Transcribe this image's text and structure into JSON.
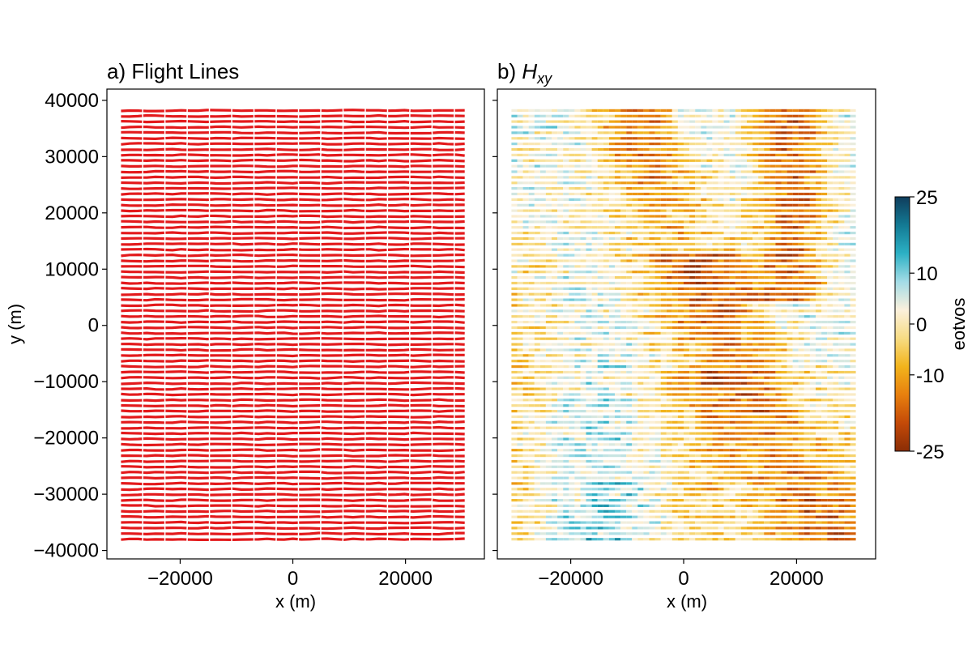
{
  "chart_data": [
    {
      "type": "scatter",
      "title": "a) Flight Lines",
      "xlabel": "x (m)",
      "ylabel": "y (m)",
      "xlim": [
        -33000,
        34000
      ],
      "ylim": [
        -41500,
        42000
      ],
      "x_ticks": [
        -20000,
        0,
        20000
      ],
      "x_tick_labels": [
        "−20000",
        "0",
        "20000"
      ],
      "y_ticks": [
        -40000,
        -30000,
        -20000,
        -10000,
        0,
        10000,
        20000,
        30000,
        40000
      ],
      "y_tick_labels": [
        "−40000",
        "−30000",
        "−20000",
        "−10000",
        "0",
        "10000",
        "20000",
        "30000",
        "40000"
      ],
      "grid": false,
      "color": "#e31a1c",
      "x_range": [
        -30500,
        30500
      ],
      "y_range": [
        -38000,
        38200
      ],
      "line_count": 78
    },
    {
      "type": "heatmap",
      "title_text": "b) ",
      "title_math": "H",
      "title_sub": "xy",
      "xlabel": "x (m)",
      "xlim": [
        -33000,
        34000
      ],
      "ylim": [
        -41500,
        42000
      ],
      "x_ticks": [
        -20000,
        0,
        20000
      ],
      "x_tick_labels": [
        "−20000",
        "0",
        "20000"
      ],
      "y_ticks": [
        -40000,
        -30000,
        -20000,
        -10000,
        0,
        10000,
        20000,
        30000,
        40000
      ],
      "grid": false,
      "x_range": [
        -30500,
        30500
      ],
      "y_range": [
        -38000,
        38200
      ],
      "line_count": 78,
      "colorbar": {
        "label": "eotvos",
        "range": [
          -25,
          25
        ],
        "ticks": [
          25,
          10,
          0,
          -10,
          -25
        ],
        "tick_labels": [
          "25",
          "10",
          "0",
          "-10",
          "-25"
        ],
        "colors": [
          "#8a2d06",
          "#c44a08",
          "#e8800e",
          "#f2b41c",
          "#f7dc84",
          "#fbf0dc",
          "#a3dce6",
          "#2cb0c4",
          "#137a94",
          "#0f3d5c"
        ]
      }
    }
  ]
}
